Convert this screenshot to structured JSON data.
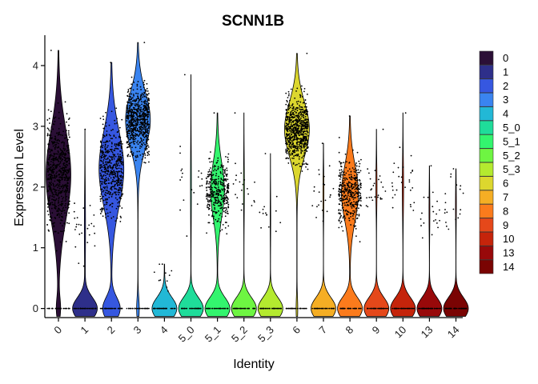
{
  "chart_data": {
    "type": "violin",
    "title": "SCNN1B",
    "xlabel": "Identity",
    "ylabel": "Expression Level",
    "ylim": [
      -0.15,
      4.5
    ],
    "yticks": [
      0,
      1,
      2,
      3,
      4
    ],
    "grid": false,
    "legend_position": "right",
    "jitter_points": true,
    "categories": [
      "0",
      "1",
      "2",
      "3",
      "4",
      "5_0",
      "5_1",
      "5_2",
      "5_3",
      "6",
      "7",
      "8",
      "9",
      "10",
      "13",
      "14"
    ],
    "colors": [
      "#2b0f36",
      "#2e2f8a",
      "#3657e0",
      "#3a84f0",
      "#22b8d6",
      "#1fdc9a",
      "#33f56e",
      "#6ef542",
      "#b4ea2f",
      "#dcd72e",
      "#f5ae24",
      "#fb7b1c",
      "#e5481a",
      "#c5240b",
      "#98090a",
      "#7a0403"
    ],
    "max_expression": [
      4.25,
      2.95,
      4.05,
      4.38,
      0.73,
      3.85,
      3.22,
      3.22,
      2.55,
      4.2,
      2.72,
      3.17,
      2.95,
      3.22,
      2.35,
      2.3
    ],
    "expressing_fraction": [
      0.92,
      0.07,
      0.72,
      0.95,
      0.02,
      0.05,
      0.5,
      0.05,
      0.03,
      0.97,
      0.06,
      0.55,
      0.07,
      0.08,
      0.05,
      0.05
    ],
    "expressing_median": [
      2.2,
      1.3,
      2.3,
      3.1,
      0.5,
      2.0,
      1.95,
      2.0,
      1.5,
      2.95,
      1.9,
      1.9,
      2.0,
      2.0,
      1.6,
      1.7
    ]
  }
}
